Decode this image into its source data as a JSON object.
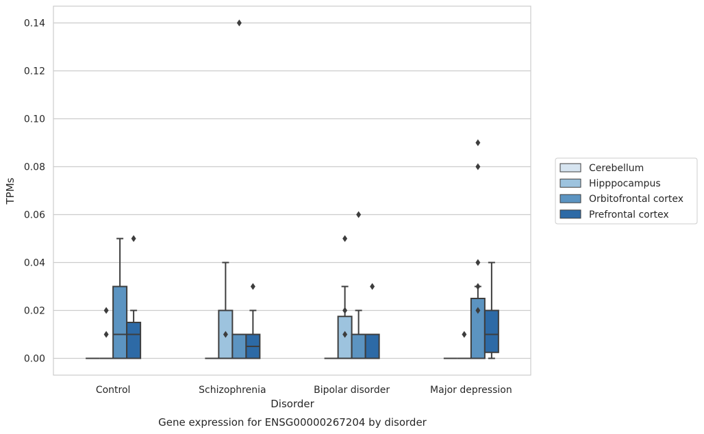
{
  "chart_data": {
    "type": "box",
    "caption": "Gene expression for ENSG00000267204 by disorder",
    "xlabel": "Disorder",
    "ylabel": "TPMs",
    "ylim": [
      -0.007,
      0.147
    ],
    "yticks": [
      0.0,
      0.02,
      0.04,
      0.06,
      0.08,
      0.1,
      0.12,
      0.14
    ],
    "ytick_labels": [
      "0.00",
      "0.02",
      "0.04",
      "0.06",
      "0.08",
      "0.10",
      "0.12",
      "0.14"
    ],
    "grid": "horizontal",
    "legend_position": "right",
    "categories": [
      "Control",
      "Schizophrenia",
      "Bipolar disorder",
      "Major depression"
    ],
    "series": [
      {
        "name": "Cerebellum",
        "color": "#d6e4f0",
        "boxes": [
          {
            "q1": 0.0,
            "median": 0.0,
            "q3": 0.0,
            "whislo": 0.0,
            "whishi": 0.0,
            "fliers": []
          },
          {
            "q1": 0.0,
            "median": 0.0,
            "q3": 0.0,
            "whislo": 0.0,
            "whishi": 0.0,
            "fliers": []
          },
          {
            "q1": 0.0,
            "median": 0.0,
            "q3": 0.0,
            "whislo": 0.0,
            "whishi": 0.0,
            "fliers": []
          },
          {
            "q1": 0.0,
            "median": 0.0,
            "q3": 0.0,
            "whislo": 0.0,
            "whishi": 0.0,
            "fliers": []
          }
        ]
      },
      {
        "name": "Hipppocampus",
        "color": "#9dc3de",
        "boxes": [
          {
            "q1": 0.0,
            "median": 0.0,
            "q3": 0.0,
            "whislo": 0.0,
            "whishi": 0.0,
            "fliers": [
              0.01,
              0.02
            ]
          },
          {
            "q1": 0.0,
            "median": 0.0,
            "q3": 0.02,
            "whislo": 0.0,
            "whishi": 0.04,
            "fliers": [
              0.01
            ]
          },
          {
            "q1": 0.0,
            "median": 0.0,
            "q3": 0.0175,
            "whislo": 0.0,
            "whishi": 0.03,
            "fliers": [
              0.01,
              0.02,
              0.05
            ]
          },
          {
            "q1": 0.0,
            "median": 0.0,
            "q3": 0.0,
            "whislo": 0.0,
            "whishi": 0.0,
            "fliers": [
              0.01
            ]
          }
        ]
      },
      {
        "name": "Orbitofrontal cortex",
        "color": "#5c94c1",
        "boxes": [
          {
            "q1": 0.0,
            "median": 0.01,
            "q3": 0.03,
            "whislo": 0.0,
            "whishi": 0.05,
            "fliers": []
          },
          {
            "q1": 0.0,
            "median": 0.01,
            "q3": 0.01,
            "whislo": 0.0,
            "whishi": 0.01,
            "fliers": [
              0.14
            ]
          },
          {
            "q1": 0.0,
            "median": 0.01,
            "q3": 0.01,
            "whislo": 0.0,
            "whishi": 0.02,
            "fliers": [
              0.06
            ]
          },
          {
            "q1": 0.0,
            "median": 0.0,
            "q3": 0.025,
            "whislo": 0.0,
            "whishi": 0.03,
            "fliers": [
              0.02,
              0.03,
              0.04,
              0.08,
              0.09
            ]
          }
        ]
      },
      {
        "name": "Prefrontal cortex",
        "color": "#2d6aa6",
        "boxes": [
          {
            "q1": 0.0,
            "median": 0.01,
            "q3": 0.015,
            "whislo": 0.0,
            "whishi": 0.02,
            "fliers": [
              0.05
            ]
          },
          {
            "q1": 0.0,
            "median": 0.005,
            "q3": 0.01,
            "whislo": 0.0,
            "whishi": 0.02,
            "fliers": [
              0.03
            ]
          },
          {
            "q1": 0.0,
            "median": 0.01,
            "q3": 0.01,
            "whislo": 0.0,
            "whishi": 0.01,
            "fliers": [
              0.03
            ]
          },
          {
            "q1": 0.0025,
            "median": 0.01,
            "q3": 0.02,
            "whislo": 0.0,
            "whishi": 0.04,
            "fliers": []
          }
        ]
      }
    ]
  }
}
